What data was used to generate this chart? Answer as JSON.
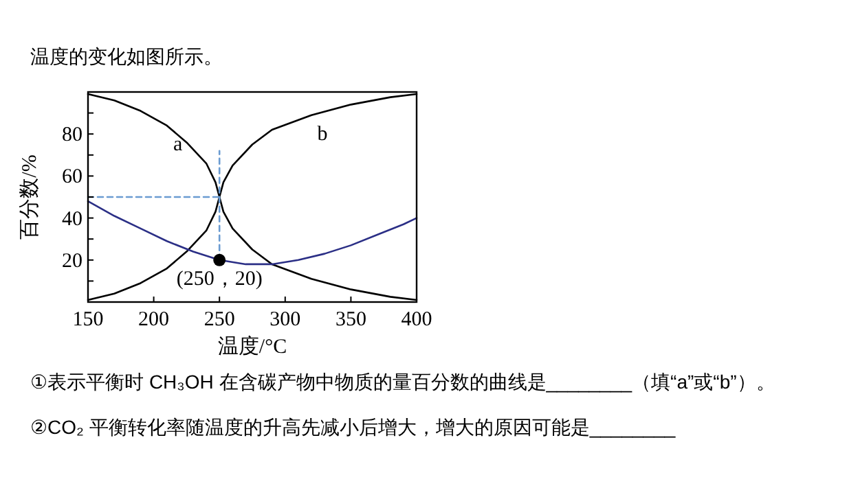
{
  "chart_data": {
    "type": "line",
    "xlabel": "温度/°C",
    "ylabel": "百分数/%",
    "xlim": [
      150,
      400
    ],
    "xticks": [
      150,
      200,
      250,
      300,
      350,
      400
    ],
    "ylim": [
      0,
      100
    ],
    "yticks": [
      {
        "value": 10,
        "label": null
      },
      20,
      {
        "value": 30,
        "label": null
      },
      40,
      {
        "value": 50,
        "label": null
      },
      60,
      {
        "value": 70,
        "label": null
      },
      80,
      {
        "value": 90,
        "label": null
      }
    ],
    "grid": false,
    "legend": false,
    "series": [
      {
        "name": "a",
        "color": "#000000",
        "line_style": "solid",
        "x": [
          150,
          170,
          190,
          210,
          225,
          240,
          247,
          250,
          253,
          260,
          275,
          290,
          320,
          350,
          380,
          400
        ],
        "values": [
          99,
          96,
          91,
          84,
          76,
          66,
          57,
          50,
          43,
          35,
          25,
          18,
          11,
          6,
          2.5,
          1
        ]
      },
      {
        "name": "b",
        "color": "#000000",
        "line_style": "solid",
        "x": [
          150,
          170,
          190,
          210,
          225,
          240,
          247,
          250,
          253,
          260,
          275,
          290,
          320,
          350,
          380,
          400
        ],
        "values": [
          1,
          4,
          9,
          16,
          24,
          34,
          43,
          50,
          57,
          65,
          75,
          82,
          89,
          94,
          97.5,
          99
        ]
      },
      {
        "color": "#2b2f86",
        "line_style": "solid",
        "x": [
          150,
          170,
          190,
          210,
          230,
          250,
          270,
          290,
          310,
          330,
          350,
          370,
          390,
          400
        ],
        "values": [
          48,
          41,
          35,
          29,
          24,
          20,
          18,
          18,
          20,
          23,
          27,
          32,
          37,
          40
        ]
      },
      {
        "color": "#6a9bd1",
        "line_style": "dashed",
        "x": [
          150,
          250
        ],
        "values": [
          50,
          50
        ]
      },
      {
        "color": "#6a9bd1",
        "line_style": "dashed",
        "x": [
          250,
          250
        ],
        "values": [
          20,
          72
        ]
      },
      {
        "type": "scatter",
        "color": "#000000",
        "marker": "circle",
        "x": [
          250
        ],
        "values": [
          20
        ]
      }
    ],
    "annotations": [
      "温度的变化如图所示。",
      "①表示平衡时 CH₃OH 在含碳产物中物质的量百分数的曲线是________（填“a”或“b”）。",
      "②CO₂ 平衡转化率随温度的升高先减小后增大，增大的原因可能是________",
      {
        "text": "(250，20)",
        "x": 250,
        "y": 20
      }
    ]
  }
}
